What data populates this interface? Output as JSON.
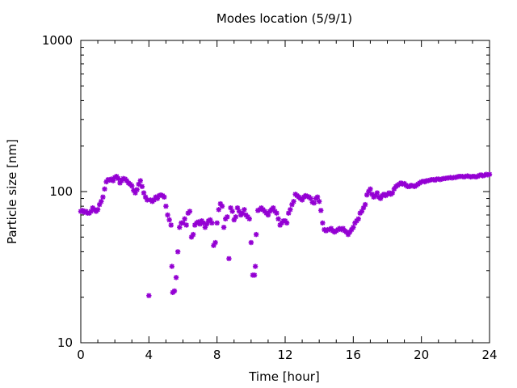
{
  "chart_data": {
    "type": "scatter",
    "title": "Modes location (5/9/1)",
    "xlabel": "Time [hour]",
    "ylabel": "Particle size [nm]",
    "xlim": [
      0,
      24
    ],
    "ylim": [
      10,
      1000
    ],
    "yscale": "log",
    "grid": false,
    "legend": "none",
    "x_ticks": [
      0,
      4,
      8,
      12,
      16,
      20,
      24
    ],
    "x_tick_labels": [
      "0",
      "4",
      "8",
      "12",
      "16",
      "20",
      "24"
    ],
    "y_ticks": [
      10,
      100,
      1000
    ],
    "y_tick_labels": [
      "10",
      "100",
      "1000"
    ],
    "marker_color": "#9400d3",
    "marker": "star",
    "points": [
      [
        0.0,
        74
      ],
      [
        0.1,
        75
      ],
      [
        0.2,
        73
      ],
      [
        0.3,
        74
      ],
      [
        0.4,
        72
      ],
      [
        0.5,
        72
      ],
      [
        0.6,
        74
      ],
      [
        0.7,
        78
      ],
      [
        0.8,
        76
      ],
      [
        0.9,
        74
      ],
      [
        1.0,
        76
      ],
      [
        1.1,
        82
      ],
      [
        1.2,
        86
      ],
      [
        1.3,
        92
      ],
      [
        1.4,
        104
      ],
      [
        1.5,
        116
      ],
      [
        1.6,
        120
      ],
      [
        1.7,
        119
      ],
      [
        1.8,
        121
      ],
      [
        1.9,
        118
      ],
      [
        2.0,
        124
      ],
      [
        2.1,
        126
      ],
      [
        2.2,
        122
      ],
      [
        2.3,
        114
      ],
      [
        2.4,
        118
      ],
      [
        2.5,
        122
      ],
      [
        2.6,
        121
      ],
      [
        2.7,
        118
      ],
      [
        2.8,
        114
      ],
      [
        2.9,
        112
      ],
      [
        3.0,
        109
      ],
      [
        3.1,
        102
      ],
      [
        3.2,
        98
      ],
      [
        3.3,
        103
      ],
      [
        3.4,
        112
      ],
      [
        3.5,
        118
      ],
      [
        3.6,
        108
      ],
      [
        3.7,
        98
      ],
      [
        3.8,
        92
      ],
      [
        3.9,
        88
      ],
      [
        4.0,
        20.5
      ],
      [
        4.1,
        88
      ],
      [
        4.2,
        86
      ],
      [
        4.3,
        88
      ],
      [
        4.4,
        92
      ],
      [
        4.5,
        90
      ],
      [
        4.6,
        94
      ],
      [
        4.7,
        95
      ],
      [
        4.8,
        94
      ],
      [
        4.9,
        92
      ],
      [
        5.0,
        80
      ],
      [
        5.1,
        70
      ],
      [
        5.2,
        65
      ],
      [
        5.3,
        60
      ],
      [
        5.35,
        32
      ],
      [
        5.4,
        21.5
      ],
      [
        5.5,
        22
      ],
      [
        5.6,
        27
      ],
      [
        5.7,
        40
      ],
      [
        5.8,
        58
      ],
      [
        5.9,
        62
      ],
      [
        6.0,
        62
      ],
      [
        6.1,
        66
      ],
      [
        6.2,
        60
      ],
      [
        6.3,
        72
      ],
      [
        6.4,
        74
      ],
      [
        6.5,
        50
      ],
      [
        6.6,
        52
      ],
      [
        6.7,
        60
      ],
      [
        6.8,
        62
      ],
      [
        6.9,
        63
      ],
      [
        7.0,
        61
      ],
      [
        7.1,
        64
      ],
      [
        7.2,
        62
      ],
      [
        7.3,
        58
      ],
      [
        7.4,
        61
      ],
      [
        7.5,
        64
      ],
      [
        7.6,
        65
      ],
      [
        7.7,
        62
      ],
      [
        7.8,
        44
      ],
      [
        7.9,
        46
      ],
      [
        8.0,
        62
      ],
      [
        8.1,
        76
      ],
      [
        8.2,
        83
      ],
      [
        8.3,
        80
      ],
      [
        8.4,
        58
      ],
      [
        8.5,
        66
      ],
      [
        8.6,
        68
      ],
      [
        8.7,
        36
      ],
      [
        8.8,
        78
      ],
      [
        8.9,
        74
      ],
      [
        9.0,
        65
      ],
      [
        9.1,
        68
      ],
      [
        9.2,
        78
      ],
      [
        9.3,
        74
      ],
      [
        9.4,
        70
      ],
      [
        9.5,
        72
      ],
      [
        9.6,
        76
      ],
      [
        9.7,
        70
      ],
      [
        9.8,
        68
      ],
      [
        9.9,
        66
      ],
      [
        10.0,
        46
      ],
      [
        10.1,
        28
      ],
      [
        10.2,
        28
      ],
      [
        10.25,
        32
      ],
      [
        10.3,
        52
      ],
      [
        10.4,
        75
      ],
      [
        10.5,
        76
      ],
      [
        10.6,
        78
      ],
      [
        10.7,
        76
      ],
      [
        10.8,
        74
      ],
      [
        10.9,
        72
      ],
      [
        11.0,
        70
      ],
      [
        11.1,
        74
      ],
      [
        11.2,
        76
      ],
      [
        11.3,
        78
      ],
      [
        11.4,
        74
      ],
      [
        11.5,
        72
      ],
      [
        11.6,
        66
      ],
      [
        11.7,
        60
      ],
      [
        11.8,
        62
      ],
      [
        11.9,
        64
      ],
      [
        12.0,
        64
      ],
      [
        12.1,
        62
      ],
      [
        12.2,
        72
      ],
      [
        12.3,
        76
      ],
      [
        12.4,
        82
      ],
      [
        12.5,
        86
      ],
      [
        12.6,
        96
      ],
      [
        12.7,
        94
      ],
      [
        12.8,
        92
      ],
      [
        12.9,
        90
      ],
      [
        13.0,
        88
      ],
      [
        13.1,
        92
      ],
      [
        13.2,
        94
      ],
      [
        13.3,
        93
      ],
      [
        13.4,
        92
      ],
      [
        13.5,
        90
      ],
      [
        13.6,
        85
      ],
      [
        13.7,
        84
      ],
      [
        13.8,
        90
      ],
      [
        13.9,
        92
      ],
      [
        14.0,
        86
      ],
      [
        14.1,
        75
      ],
      [
        14.2,
        62
      ],
      [
        14.3,
        56
      ],
      [
        14.4,
        55
      ],
      [
        14.5,
        56
      ],
      [
        14.6,
        56
      ],
      [
        14.7,
        57
      ],
      [
        14.8,
        55
      ],
      [
        14.9,
        54
      ],
      [
        15.0,
        55
      ],
      [
        15.1,
        56
      ],
      [
        15.2,
        57
      ],
      [
        15.3,
        56
      ],
      [
        15.4,
        57
      ],
      [
        15.5,
        55
      ],
      [
        15.6,
        54
      ],
      [
        15.7,
        52
      ],
      [
        15.8,
        54
      ],
      [
        15.9,
        56
      ],
      [
        16.0,
        58
      ],
      [
        16.1,
        62
      ],
      [
        16.2,
        64
      ],
      [
        16.3,
        66
      ],
      [
        16.4,
        72
      ],
      [
        16.5,
        74
      ],
      [
        16.6,
        78
      ],
      [
        16.7,
        82
      ],
      [
        16.8,
        95
      ],
      [
        16.9,
        100
      ],
      [
        17.0,
        104
      ],
      [
        17.1,
        96
      ],
      [
        17.2,
        92
      ],
      [
        17.3,
        94
      ],
      [
        17.4,
        98
      ],
      [
        17.5,
        92
      ],
      [
        17.6,
        90
      ],
      [
        17.7,
        94
      ],
      [
        17.8,
        96
      ],
      [
        17.9,
        94
      ],
      [
        18.0,
        96
      ],
      [
        18.1,
        98
      ],
      [
        18.2,
        96
      ],
      [
        18.3,
        98
      ],
      [
        18.4,
        104
      ],
      [
        18.5,
        108
      ],
      [
        18.6,
        110
      ],
      [
        18.7,
        112
      ],
      [
        18.8,
        114
      ],
      [
        18.9,
        112
      ],
      [
        19.0,
        113
      ],
      [
        19.1,
        110
      ],
      [
        19.2,
        108
      ],
      [
        19.3,
        108
      ],
      [
        19.4,
        110
      ],
      [
        19.5,
        109
      ],
      [
        19.6,
        108
      ],
      [
        19.7,
        110
      ],
      [
        19.8,
        112
      ],
      [
        19.9,
        114
      ],
      [
        20.0,
        116
      ],
      [
        20.1,
        117
      ],
      [
        20.2,
        116
      ],
      [
        20.3,
        118
      ],
      [
        20.4,
        118
      ],
      [
        20.5,
        119
      ],
      [
        20.6,
        120
      ],
      [
        20.7,
        120
      ],
      [
        20.8,
        119
      ],
      [
        20.9,
        121
      ],
      [
        21.0,
        121
      ],
      [
        21.1,
        120
      ],
      [
        21.2,
        121
      ],
      [
        21.3,
        122
      ],
      [
        21.4,
        122
      ],
      [
        21.5,
        123
      ],
      [
        21.6,
        123
      ],
      [
        21.7,
        124
      ],
      [
        21.8,
        123
      ],
      [
        21.9,
        124
      ],
      [
        22.0,
        124
      ],
      [
        22.1,
        125
      ],
      [
        22.2,
        126
      ],
      [
        22.3,
        126
      ],
      [
        22.4,
        126
      ],
      [
        22.5,
        125
      ],
      [
        22.6,
        126
      ],
      [
        22.7,
        127
      ],
      [
        22.8,
        126
      ],
      [
        22.9,
        125
      ],
      [
        23.0,
        126
      ],
      [
        23.1,
        126
      ],
      [
        23.2,
        125
      ],
      [
        23.3,
        126
      ],
      [
        23.4,
        128
      ],
      [
        23.5,
        129
      ],
      [
        23.6,
        127
      ],
      [
        23.7,
        128
      ],
      [
        23.8,
        130
      ],
      [
        23.9,
        129
      ],
      [
        24.0,
        130
      ]
    ]
  }
}
